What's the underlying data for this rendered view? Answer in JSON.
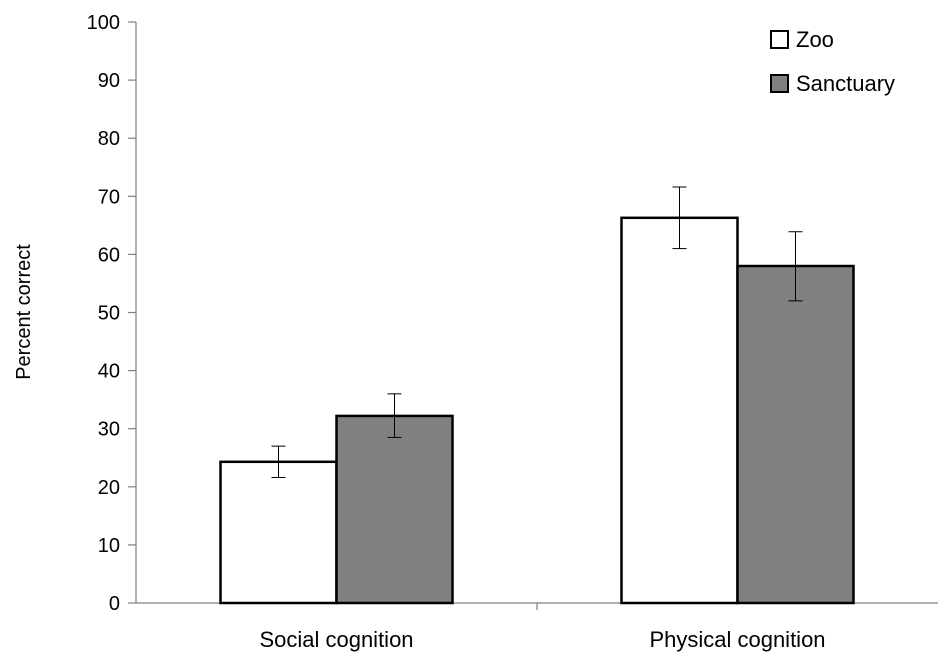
{
  "chart_data": {
    "type": "bar",
    "title": "",
    "xlabel": "",
    "ylabel": "Percent correct",
    "ylim": [
      0,
      100
    ],
    "yticks": [
      0,
      10,
      20,
      30,
      40,
      50,
      60,
      70,
      80,
      90,
      100
    ],
    "categories": [
      "Social cognition",
      "Physical cognition"
    ],
    "series": [
      {
        "name": "Zoo",
        "color": "#ffffff",
        "values": [
          24.3,
          66.3
        ],
        "error_low": [
          21.6,
          61.0
        ],
        "error_high": [
          27.0,
          71.6
        ]
      },
      {
        "name": "Sanctuary",
        "color": "#808080",
        "values": [
          32.2,
          58.0
        ],
        "error_low": [
          28.5,
          52.0
        ],
        "error_high": [
          36.0,
          63.9
        ]
      }
    ],
    "legend_position": "top-right",
    "grid": false
  }
}
